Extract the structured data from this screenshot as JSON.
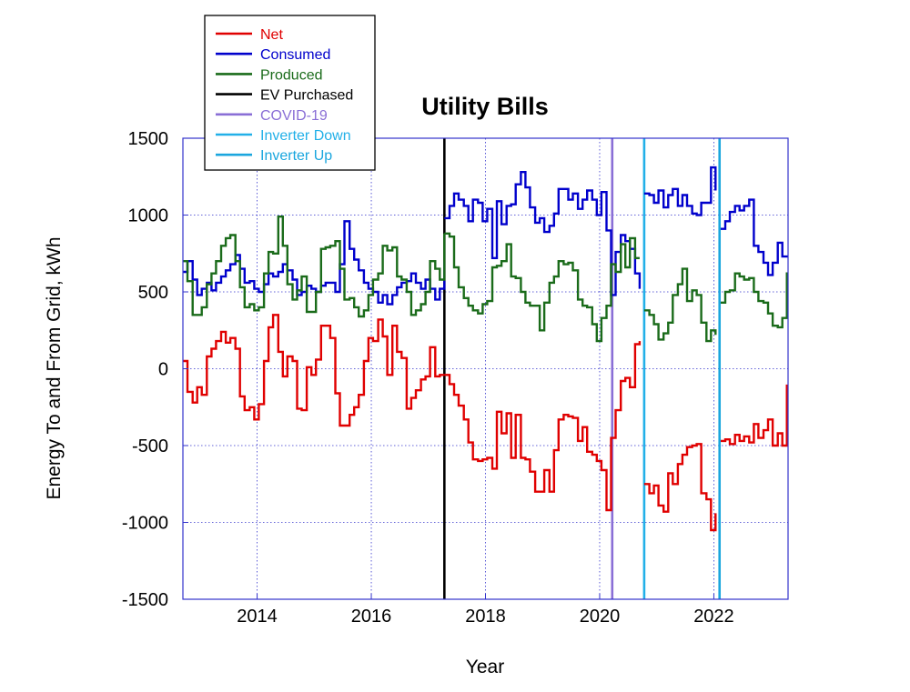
{
  "chart_data": {
    "type": "line",
    "title": "Utility Bills",
    "xlabel": "Year",
    "ylabel": "Energy To and From Grid, kWh",
    "xlim": [
      2012.7,
      2023.3
    ],
    "ylim": [
      -1500,
      1500
    ],
    "xticks": [
      2014,
      2016,
      2018,
      2020,
      2022
    ],
    "xtick_labels": [
      "2014",
      "2016",
      "2018",
      "2020",
      "2022"
    ],
    "yticks": [
      -1500,
      -1000,
      -500,
      0,
      500,
      1000,
      1500
    ],
    "ytick_labels": [
      "-1500",
      "-1000",
      "-500",
      "0",
      "500",
      "1000",
      "1500"
    ],
    "grid": true,
    "step": true,
    "legend_position": "top-left",
    "series": [
      {
        "name": "Net",
        "color": "#e00000",
        "segments": [
          {
            "x": [
              2012.7,
              2012.78,
              2012.87,
              2012.95,
              2013.03,
              2013.12,
              2013.2,
              2013.28,
              2013.37,
              2013.45,
              2013.53,
              2013.62,
              2013.7,
              2013.78,
              2013.87,
              2013.95,
              2014.03,
              2014.12,
              2014.2,
              2014.28,
              2014.37,
              2014.45,
              2014.53,
              2014.62,
              2014.7,
              2014.78,
              2014.87,
              2014.95,
              2015.03,
              2015.12,
              2015.2,
              2015.28,
              2015.37,
              2015.45,
              2015.53,
              2015.62,
              2015.7,
              2015.78,
              2015.87,
              2015.95,
              2016.03,
              2016.12,
              2016.2,
              2016.28,
              2016.37,
              2016.45,
              2016.53,
              2016.62,
              2016.7,
              2016.78,
              2016.87,
              2016.95,
              2017.03,
              2017.12,
              2017.2,
              2017.28
            ],
            "y": [
              50,
              -150,
              -220,
              -120,
              -170,
              80,
              130,
              180,
              240,
              170,
              200,
              130,
              -180,
              -270,
              -250,
              -330,
              -230,
              50,
              270,
              350,
              110,
              -50,
              80,
              50,
              -260,
              -270,
              10,
              -40,
              60,
              280,
              280,
              200,
              -160,
              -370,
              -370,
              -300,
              -250,
              -170,
              50,
              200,
              180,
              320,
              210,
              -40,
              280,
              110,
              70,
              -260,
              -190,
              -140,
              -70,
              -50,
              140,
              -50,
              -40,
              -40
            ]
          },
          {
            "x": [
              2017.28,
              2017.37,
              2017.45,
              2017.53,
              2017.62,
              2017.7,
              2017.78,
              2017.87,
              2017.95,
              2018.03,
              2018.12,
              2018.2,
              2018.28,
              2018.37,
              2018.45,
              2018.53,
              2018.62,
              2018.7,
              2018.78,
              2018.87,
              2018.95,
              2019.03,
              2019.12,
              2019.2,
              2019.28,
              2019.37,
              2019.45,
              2019.53,
              2019.62,
              2019.7,
              2019.78,
              2019.87,
              2019.95,
              2020.03,
              2020.12,
              2020.2,
              2020.28,
              2020.37,
              2020.45,
              2020.53,
              2020.62,
              2020.7
            ],
            "y": [
              -40,
              -100,
              -170,
              -240,
              -330,
              -480,
              -590,
              -600,
              -590,
              -580,
              -650,
              -280,
              -420,
              -290,
              -580,
              -300,
              -580,
              -590,
              -670,
              -800,
              -800,
              -660,
              -800,
              -530,
              -330,
              -300,
              -310,
              -320,
              -470,
              -380,
              -540,
              -560,
              -600,
              -660,
              -920,
              -450,
              -270,
              -80,
              -60,
              -120,
              160,
              180
            ]
          },
          {
            "x": [
              2020.78,
              2020.87,
              2020.95,
              2021.03,
              2021.12,
              2021.2,
              2021.28,
              2021.37,
              2021.45,
              2021.53,
              2021.62,
              2021.7,
              2021.78,
              2021.87,
              2021.95,
              2022.03
            ],
            "y": [
              -750,
              -810,
              -760,
              -890,
              -930,
              -680,
              -750,
              -620,
              -560,
              -510,
              -500,
              -490,
              -810,
              -850,
              -1050,
              -940
            ]
          },
          {
            "x": [
              2022.12,
              2022.2,
              2022.28,
              2022.37,
              2022.45,
              2022.53,
              2022.62,
              2022.7,
              2022.78,
              2022.87,
              2022.95,
              2023.03,
              2023.12,
              2023.2,
              2023.28,
              2023.3
            ],
            "y": [
              -470,
              -460,
              -490,
              -430,
              -470,
              -440,
              -480,
              -360,
              -450,
              -400,
              -330,
              -500,
              -420,
              -500,
              -110,
              -110
            ]
          }
        ]
      },
      {
        "name": "Consumed",
        "color": "#0000cc",
        "segments": [
          {
            "x": [
              2012.7,
              2012.78,
              2012.87,
              2012.95,
              2013.03,
              2013.12,
              2013.2,
              2013.28,
              2013.37,
              2013.45,
              2013.53,
              2013.62,
              2013.7,
              2013.78,
              2013.87,
              2013.95,
              2014.03,
              2014.12,
              2014.2,
              2014.28,
              2014.37,
              2014.45,
              2014.53,
              2014.62,
              2014.7,
              2014.78,
              2014.87,
              2014.95,
              2015.03,
              2015.12,
              2015.2,
              2015.28,
              2015.37,
              2015.45,
              2015.53,
              2015.62,
              2015.7,
              2015.78,
              2015.87,
              2015.95,
              2016.03,
              2016.12,
              2016.2,
              2016.28,
              2016.37,
              2016.45,
              2016.53,
              2016.62,
              2016.7,
              2016.78,
              2016.87,
              2016.95,
              2017.03,
              2017.12,
              2017.2,
              2017.28
            ],
            "y": [
              630,
              700,
              580,
              480,
              520,
              560,
              510,
              560,
              600,
              640,
              680,
              740,
              650,
              560,
              570,
              520,
              500,
              550,
              620,
              600,
              630,
              680,
              640,
              580,
              480,
              500,
              540,
              520,
              500,
              540,
              560,
              560,
              500,
              680,
              960,
              780,
              710,
              640,
              560,
              520,
              500,
              430,
              480,
              420,
              480,
              530,
              560,
              570,
              620,
              560,
              520,
              580,
              520,
              450,
              520,
              700
            ]
          },
          {
            "x": [
              2017.28,
              2017.37,
              2017.45,
              2017.53,
              2017.62,
              2017.7,
              2017.78,
              2017.87,
              2017.95,
              2018.03,
              2018.12,
              2018.2,
              2018.28,
              2018.37,
              2018.45,
              2018.53,
              2018.62,
              2018.7,
              2018.78,
              2018.87,
              2018.95,
              2019.03,
              2019.12,
              2019.2,
              2019.28,
              2019.37,
              2019.45,
              2019.53,
              2019.62,
              2019.7,
              2019.78,
              2019.87,
              2019.95,
              2020.03,
              2020.12,
              2020.2,
              2020.28,
              2020.37,
              2020.45,
              2020.53,
              2020.62,
              2020.7
            ],
            "y": [
              980,
              1060,
              1140,
              1100,
              1060,
              960,
              1100,
              1080,
              960,
              1040,
              720,
              1090,
              940,
              1060,
              1070,
              1200,
              1280,
              1180,
              1050,
              950,
              980,
              890,
              930,
              1010,
              1170,
              1170,
              1100,
              1140,
              1040,
              1100,
              1160,
              1100,
              1000,
              1150,
              900,
              480,
              760,
              870,
              830,
              780,
              620,
              520
            ]
          },
          {
            "x": [
              2020.78,
              2020.87,
              2020.95,
              2021.03,
              2021.12,
              2021.2,
              2021.28,
              2021.37,
              2021.45,
              2021.53,
              2021.62,
              2021.7,
              2021.78,
              2021.87,
              2021.95,
              2022.03
            ],
            "y": [
              1140,
              1130,
              1080,
              1160,
              1050,
              1130,
              1170,
              1060,
              1130,
              1060,
              1010,
              1000,
              1080,
              1080,
              1310,
              1160
            ]
          },
          {
            "x": [
              2022.12,
              2022.2,
              2022.28,
              2022.37,
              2022.45,
              2022.53,
              2022.62,
              2022.7,
              2022.78,
              2022.87,
              2022.95,
              2023.03,
              2023.12,
              2023.2,
              2023.28,
              2023.3
            ],
            "y": [
              910,
              960,
              1020,
              1060,
              1030,
              1060,
              1100,
              800,
              760,
              690,
              610,
              690,
              820,
              730,
              730,
              730
            ]
          }
        ]
      },
      {
        "name": "Produced",
        "color": "#1a6b1a",
        "segments": [
          {
            "x": [
              2012.7,
              2012.78,
              2012.87,
              2012.95,
              2013.03,
              2013.12,
              2013.2,
              2013.28,
              2013.37,
              2013.45,
              2013.53,
              2013.62,
              2013.7,
              2013.78,
              2013.87,
              2013.95,
              2014.03,
              2014.12,
              2014.2,
              2014.28,
              2014.37,
              2014.45,
              2014.53,
              2014.62,
              2014.7,
              2014.78,
              2014.87,
              2014.95,
              2015.03,
              2015.12,
              2015.2,
              2015.28,
              2015.37,
              2015.45,
              2015.53,
              2015.62,
              2015.7,
              2015.78,
              2015.87,
              2015.95,
              2016.03,
              2016.12,
              2016.2,
              2016.28,
              2016.37,
              2016.45,
              2016.53,
              2016.62,
              2016.7,
              2016.78,
              2016.87,
              2016.95,
              2017.03,
              2017.12,
              2017.2,
              2017.28
            ],
            "y": [
              700,
              570,
              350,
              350,
              400,
              550,
              620,
              700,
              800,
              850,
              870,
              700,
              530,
              400,
              420,
              380,
              400,
              620,
              760,
              750,
              990,
              800,
              550,
              450,
              510,
              600,
              370,
              370,
              500,
              780,
              790,
              800,
              830,
              650,
              450,
              460,
              400,
              340,
              380,
              480,
              580,
              620,
              800,
              770,
              790,
              600,
              580,
              500,
              350,
              380,
              420,
              500,
              700,
              650,
              580,
              880
            ]
          },
          {
            "x": [
              2017.28,
              2017.37,
              2017.45,
              2017.53,
              2017.62,
              2017.7,
              2017.78,
              2017.87,
              2017.95,
              2018.03,
              2018.12,
              2018.2,
              2018.28,
              2018.37,
              2018.45,
              2018.53,
              2018.62,
              2018.7,
              2018.78,
              2018.87,
              2018.95,
              2019.03,
              2019.12,
              2019.2,
              2019.28,
              2019.37,
              2019.45,
              2019.53,
              2019.62,
              2019.7,
              2019.78,
              2019.87,
              2019.95,
              2020.03,
              2020.12,
              2020.2,
              2020.28,
              2020.37,
              2020.45,
              2020.53,
              2020.62,
              2020.7
            ],
            "y": [
              880,
              860,
              660,
              530,
              460,
              410,
              380,
              360,
              420,
              440,
              660,
              670,
              700,
              810,
              600,
              590,
              500,
              430,
              410,
              410,
              250,
              430,
              560,
              600,
              700,
              680,
              690,
              640,
              450,
              410,
              400,
              290,
              180,
              330,
              410,
              680,
              630,
              810,
              660,
              850,
              720,
              720
            ]
          },
          {
            "x": [
              2020.78,
              2020.87,
              2020.95,
              2021.03,
              2021.12,
              2021.2,
              2021.28,
              2021.37,
              2021.45,
              2021.53,
              2021.62,
              2021.7,
              2021.78,
              2021.87,
              2021.95,
              2022.03
            ],
            "y": [
              380,
              350,
              290,
              190,
              230,
              300,
              480,
              550,
              650,
              440,
              510,
              480,
              300,
              180,
              250,
              220
            ]
          },
          {
            "x": [
              2022.12,
              2022.2,
              2022.28,
              2022.37,
              2022.45,
              2022.53,
              2022.62,
              2022.7,
              2022.78,
              2022.87,
              2022.95,
              2023.03,
              2023.12,
              2023.2,
              2023.28,
              2023.3
            ],
            "y": [
              430,
              500,
              510,
              620,
              600,
              580,
              590,
              500,
              440,
              430,
              360,
              280,
              270,
              330,
              620,
              620
            ]
          }
        ]
      }
    ],
    "events": [
      {
        "name": "EV Purchased",
        "x": 2017.28,
        "color": "#000000"
      },
      {
        "name": "COVID-19",
        "x": 2020.22,
        "color": "#8a6fd6"
      },
      {
        "name": "Inverter Down",
        "x": 2020.78,
        "color": "#22b0e8"
      },
      {
        "name": "Inverter Up",
        "x": 2022.1,
        "color": "#1aa6de"
      }
    ],
    "legend": [
      {
        "label": "Net",
        "color": "#e00000"
      },
      {
        "label": "Consumed",
        "color": "#0000cc"
      },
      {
        "label": "Produced",
        "color": "#1a6b1a"
      },
      {
        "label": "EV Purchased",
        "color": "#000000"
      },
      {
        "label": "COVID-19",
        "color": "#8a6fd6"
      },
      {
        "label": "Inverter Down",
        "color": "#22b0e8"
      },
      {
        "label": "Inverter Up",
        "color": "#1aa6de"
      }
    ],
    "colors": {
      "plot_frame": "#3333cc",
      "grid": "#3333cc"
    }
  }
}
